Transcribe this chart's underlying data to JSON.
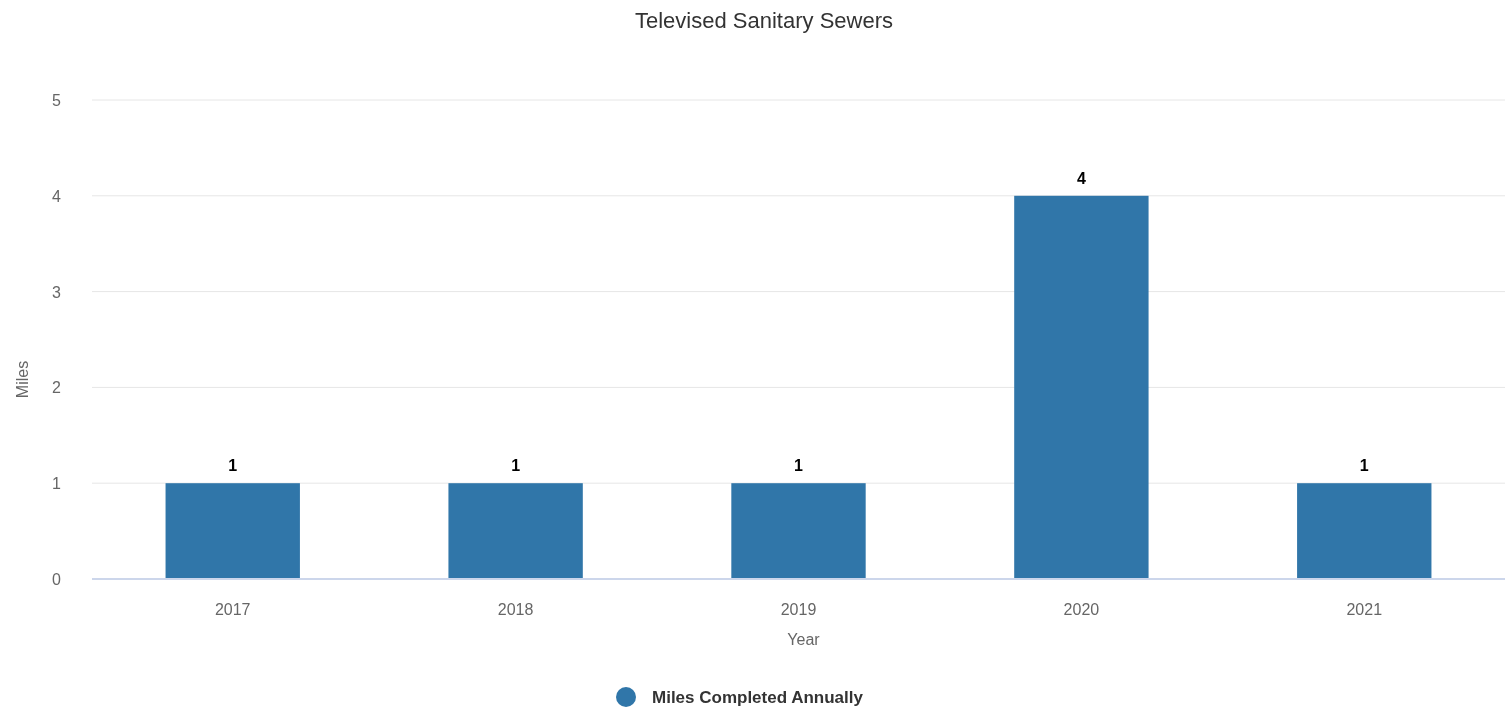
{
  "chart_data": {
    "type": "bar",
    "title": "Televised Sanitary Sewers",
    "xlabel": "Year",
    "ylabel": "Miles",
    "categories": [
      "2017",
      "2018",
      "2019",
      "2020",
      "2021"
    ],
    "series": [
      {
        "name": "Miles Completed Annually",
        "color": "#3076a9",
        "values": [
          1,
          1,
          1,
          4,
          1
        ]
      }
    ],
    "ylim": [
      0,
      5
    ],
    "yticks": [
      0,
      1,
      2,
      3,
      4,
      5
    ],
    "grid": "y",
    "legend": "bottom",
    "data_labels": true
  }
}
